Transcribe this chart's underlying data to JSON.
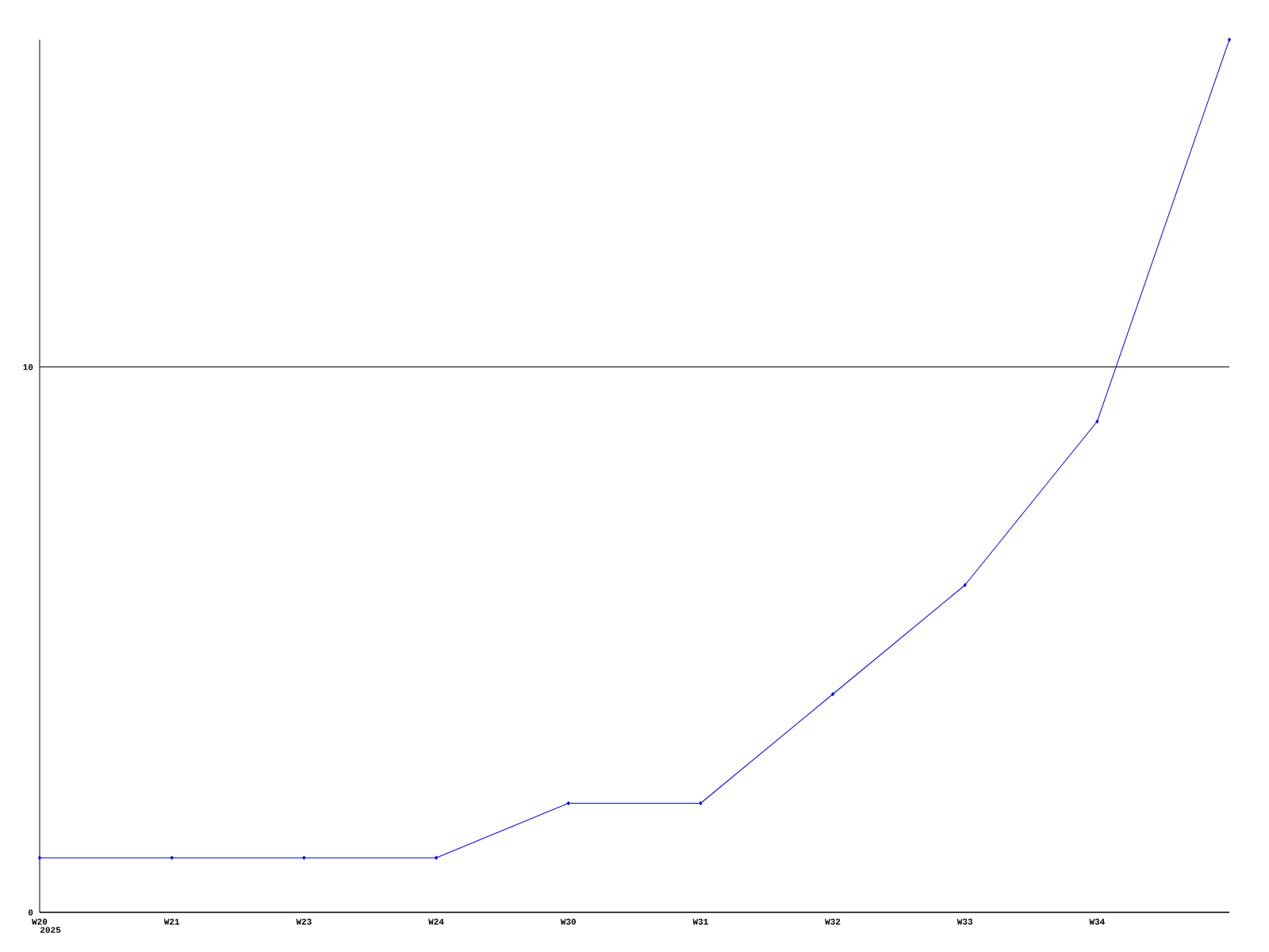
{
  "chart_data": {
    "type": "line",
    "categories": [
      "W20",
      "W21",
      "W23",
      "W24",
      "W30",
      "W31",
      "W32",
      "W33",
      "W34",
      null
    ],
    "values": [
      1,
      1,
      1,
      1,
      2,
      2,
      4,
      6,
      9,
      16
    ],
    "color": "#0000ff",
    "marker": "diamond",
    "grid": "y",
    "ylim": [
      0,
      16
    ],
    "yticks": [
      0,
      10
    ],
    "annotations": [
      "2025"
    ]
  }
}
